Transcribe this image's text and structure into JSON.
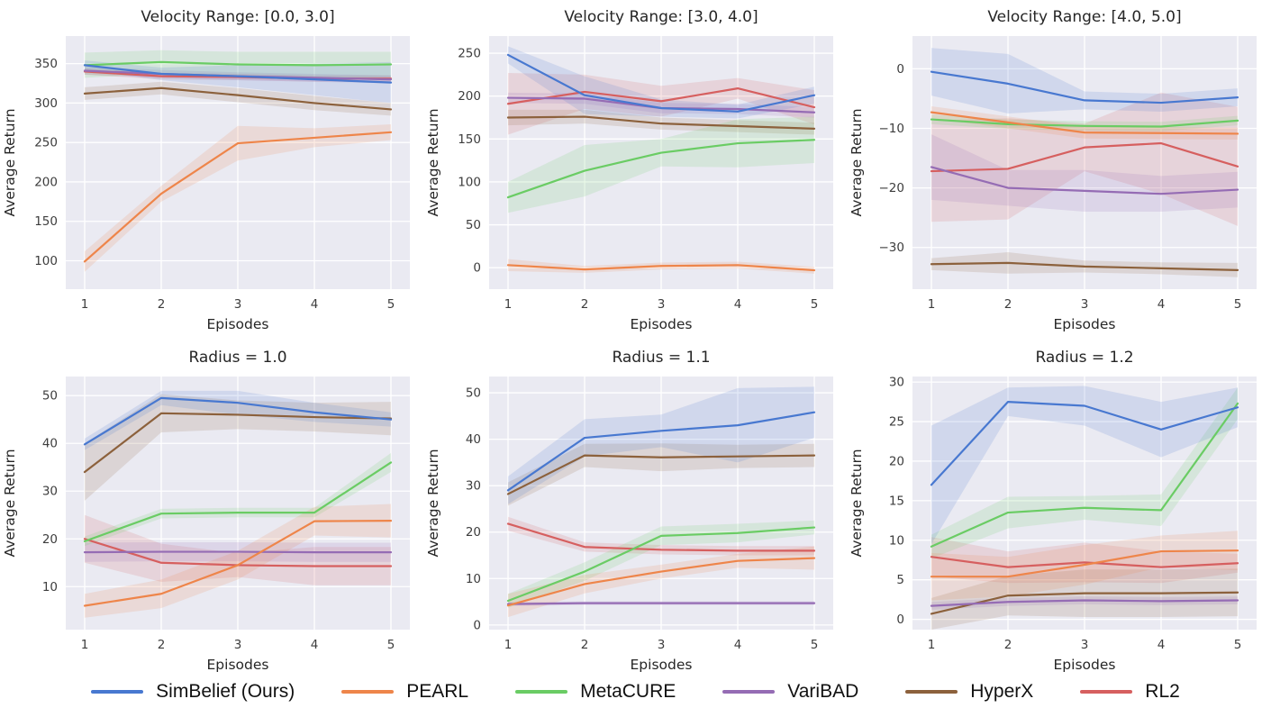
{
  "figure": {
    "background": "#ffffff",
    "plot_background": "#eaeaf2",
    "grid_color": "#ffffff",
    "text_color": "#262626"
  },
  "legend": {
    "items": [
      {
        "label": "SimBelief (Ours)",
        "color": "#4878d0"
      },
      {
        "label": "PEARL",
        "color": "#ee854a"
      },
      {
        "label": "MetaCURE",
        "color": "#6acc64"
      },
      {
        "label": "VariBAD",
        "color": "#956cb4"
      },
      {
        "label": "HyperX",
        "color": "#8c613c"
      },
      {
        "label": "RL2",
        "color": "#d65f5f"
      }
    ]
  },
  "chart_data": [
    {
      "type": "line",
      "title": "Velocity Range: [0.0, 3.0]",
      "xlabel": "Episodes",
      "ylabel": "Average Return",
      "x": [
        1,
        2,
        3,
        4,
        5
      ],
      "xticks": [
        1,
        2,
        3,
        4,
        5
      ],
      "yticks": [
        100,
        150,
        200,
        250,
        300,
        350
      ],
      "ylim": [
        64,
        385
      ],
      "grid": true,
      "legend_position": "figure-bottom",
      "series": [
        {
          "name": "SimBelief (Ours)",
          "color": "#4878d0",
          "values": [
            348,
            337,
            334,
            330,
            326
          ],
          "band": [
            6,
            8,
            14,
            20,
            26
          ]
        },
        {
          "name": "PEARL",
          "color": "#ee854a",
          "values": [
            99,
            185,
            249,
            256,
            263
          ],
          "band": [
            13,
            10,
            22,
            12,
            10
          ]
        },
        {
          "name": "MetaCURE",
          "color": "#6acc64",
          "values": [
            348,
            352,
            349,
            348,
            349
          ],
          "band": [
            16,
            15,
            16,
            17,
            16
          ]
        },
        {
          "name": "VariBAD",
          "color": "#956cb4",
          "values": [
            341,
            337,
            334,
            332,
            330
          ],
          "band": [
            5,
            5,
            5,
            5,
            5
          ]
        },
        {
          "name": "HyperX",
          "color": "#8c613c",
          "values": [
            312,
            319,
            310,
            300,
            292
          ],
          "band": [
            8,
            8,
            9,
            9,
            8
          ]
        },
        {
          "name": "RL2",
          "color": "#d65f5f",
          "values": [
            340,
            334,
            333,
            331,
            331
          ],
          "band": [
            4,
            4,
            4,
            4,
            4
          ]
        }
      ]
    },
    {
      "type": "line",
      "title": "Velocity Range: [3.0, 4.0]",
      "xlabel": "Episodes",
      "ylabel": "Average Return",
      "x": [
        1,
        2,
        3,
        4,
        5
      ],
      "xticks": [
        1,
        2,
        3,
        4,
        5
      ],
      "yticks": [
        0,
        50,
        100,
        150,
        200,
        250
      ],
      "ylim": [
        -25,
        270
      ],
      "grid": true,
      "legend_position": "figure-bottom",
      "series": [
        {
          "name": "SimBelief (Ours)",
          "color": "#4878d0",
          "values": [
            248,
            201,
            186,
            182,
            201
          ],
          "band": [
            10,
            22,
            10,
            8,
            10
          ]
        },
        {
          "name": "PEARL",
          "color": "#ee854a",
          "values": [
            3,
            -2,
            2,
            3,
            -3
          ],
          "band": [
            7,
            4,
            4,
            4,
            4
          ]
        },
        {
          "name": "MetaCURE",
          "color": "#6acc64",
          "values": [
            82,
            113,
            134,
            145,
            149
          ],
          "band": [
            18,
            30,
            16,
            28,
            27
          ]
        },
        {
          "name": "VariBAD",
          "color": "#956cb4",
          "values": [
            198,
            197,
            186,
            185,
            181
          ],
          "band": [
            6,
            6,
            6,
            6,
            6
          ]
        },
        {
          "name": "HyperX",
          "color": "#8c613c",
          "values": [
            175,
            176,
            168,
            165,
            162
          ],
          "band": [
            9,
            8,
            7,
            7,
            7
          ]
        },
        {
          "name": "RL2",
          "color": "#d65f5f",
          "values": [
            191,
            205,
            194,
            209,
            187
          ],
          "band": [
            36,
            20,
            18,
            12,
            20
          ]
        }
      ]
    },
    {
      "type": "line",
      "title": "Velocity Range: [4.0, 5.0]",
      "xlabel": "Episodes",
      "ylabel": "Average Return",
      "x": [
        1,
        2,
        3,
        4,
        5
      ],
      "xticks": [
        1,
        2,
        3,
        4,
        5
      ],
      "yticks": [
        0,
        -10,
        -20,
        -30
      ],
      "ylim": [
        -37,
        5.5
      ],
      "grid": true,
      "legend_position": "figure-bottom",
      "series": [
        {
          "name": "SimBelief (Ours)",
          "color": "#4878d0",
          "values": [
            -0.5,
            -2.5,
            -5.3,
            -5.7,
            -4.8
          ],
          "band": [
            4,
            5,
            1.5,
            1.5,
            1.5
          ]
        },
        {
          "name": "PEARL",
          "color": "#ee854a",
          "values": [
            -7.3,
            -9.0,
            -10.7,
            -10.8,
            -10.9
          ],
          "band": [
            1,
            1,
            1,
            1,
            1
          ]
        },
        {
          "name": "MetaCURE",
          "color": "#6acc64",
          "values": [
            -8.5,
            -9.3,
            -9.6,
            -9.7,
            -8.7
          ],
          "band": [
            0.8,
            0.8,
            0.8,
            0.8,
            0.8
          ]
        },
        {
          "name": "VariBAD",
          "color": "#956cb4",
          "values": [
            -16.5,
            -20.0,
            -20.5,
            -21.0,
            -20.3
          ],
          "band": [
            5.5,
            3,
            3.5,
            3,
            3
          ]
        },
        {
          "name": "HyperX",
          "color": "#8c613c",
          "values": [
            -32.8,
            -32.6,
            -33.2,
            -33.5,
            -33.8
          ],
          "band": [
            1,
            1.8,
            1,
            1,
            1.2
          ]
        },
        {
          "name": "RL2",
          "color": "#d65f5f",
          "values": [
            -17.2,
            -16.8,
            -13.2,
            -12.5,
            -16.4
          ],
          "band": [
            8.5,
            8.5,
            4,
            8.5,
            10
          ]
        }
      ]
    },
    {
      "type": "line",
      "title": "Radius = 1.0",
      "xlabel": "Episodes",
      "ylabel": "Average Return",
      "x": [
        1,
        2,
        3,
        4,
        5
      ],
      "xticks": [
        1,
        2,
        3,
        4,
        5
      ],
      "yticks": [
        10,
        20,
        30,
        40,
        50
      ],
      "ylim": [
        1,
        54
      ],
      "grid": true,
      "legend_position": "figure-bottom",
      "series": [
        {
          "name": "SimBelief (Ours)",
          "color": "#4878d0",
          "values": [
            39.8,
            49.5,
            48.5,
            46.5,
            45.0
          ],
          "band": [
            1.2,
            1.5,
            2.5,
            2,
            1.5
          ]
        },
        {
          "name": "PEARL",
          "color": "#ee854a",
          "values": [
            6.0,
            8.5,
            14.5,
            23.7,
            23.8
          ],
          "band": [
            2.5,
            3,
            3,
            3,
            3.5
          ]
        },
        {
          "name": "MetaCURE",
          "color": "#6acc64",
          "values": [
            19.5,
            25.3,
            25.5,
            25.5,
            36.0
          ],
          "band": [
            1,
            1,
            1,
            1,
            2
          ]
        },
        {
          "name": "VariBAD",
          "color": "#956cb4",
          "values": [
            17.2,
            17.3,
            17.3,
            17.2,
            17.2
          ],
          "band": [
            2,
            2,
            2,
            2,
            2
          ]
        },
        {
          "name": "HyperX",
          "color": "#8c613c",
          "values": [
            34.0,
            46.3,
            46.0,
            45.5,
            45.2
          ],
          "band": [
            6,
            4,
            3,
            3,
            3.5
          ]
        },
        {
          "name": "RL2",
          "color": "#d65f5f",
          "values": [
            20.0,
            15.0,
            14.5,
            14.3,
            14.3
          ],
          "band": [
            5,
            4,
            2.5,
            4,
            4
          ]
        }
      ]
    },
    {
      "type": "line",
      "title": "Radius = 1.1",
      "xlabel": "Episodes",
      "ylabel": "Average Return",
      "x": [
        1,
        2,
        3,
        4,
        5
      ],
      "xticks": [
        1,
        2,
        3,
        4,
        5
      ],
      "yticks": [
        0,
        10,
        20,
        30,
        40,
        50
      ],
      "ylim": [
        -1,
        53.5
      ],
      "grid": true,
      "legend_position": "figure-bottom",
      "series": [
        {
          "name": "SimBelief (Ours)",
          "color": "#4878d0",
          "values": [
            29.0,
            40.3,
            41.8,
            43.0,
            45.8
          ],
          "band": [
            3,
            4,
            3.5,
            8,
            5.5
          ]
        },
        {
          "name": "PEARL",
          "color": "#ee854a",
          "values": [
            4.2,
            8.8,
            11.5,
            13.8,
            14.4
          ],
          "band": [
            2.5,
            2,
            1.5,
            1.5,
            2.5
          ]
        },
        {
          "name": "MetaCURE",
          "color": "#6acc64",
          "values": [
            5.2,
            11.5,
            19.2,
            19.8,
            21.0
          ],
          "band": [
            1.5,
            2,
            2,
            2,
            1.5
          ]
        },
        {
          "name": "VariBAD",
          "color": "#956cb4",
          "values": [
            4.5,
            4.7,
            4.7,
            4.7,
            4.7
          ],
          "band": [
            0.4,
            0.4,
            0.4,
            0.4,
            0.4
          ]
        },
        {
          "name": "HyperX",
          "color": "#8c613c",
          "values": [
            28.2,
            36.5,
            36.1,
            36.3,
            36.5
          ],
          "band": [
            2.5,
            2.5,
            3,
            2.5,
            2.5
          ]
        },
        {
          "name": "RL2",
          "color": "#d65f5f",
          "values": [
            21.8,
            16.8,
            16.2,
            16.0,
            16.0
          ],
          "band": [
            1.5,
            1,
            1,
            1,
            1
          ]
        }
      ]
    },
    {
      "type": "line",
      "title": "Radius = 1.2",
      "xlabel": "Episodes",
      "ylabel": "Average Return",
      "x": [
        1,
        2,
        3,
        4,
        5
      ],
      "xticks": [
        1,
        2,
        3,
        4,
        5
      ],
      "yticks": [
        0,
        5,
        10,
        15,
        20,
        25,
        30
      ],
      "ylim": [
        -1.3,
        30.7
      ],
      "grid": true,
      "legend_position": "figure-bottom",
      "series": [
        {
          "name": "SimBelief (Ours)",
          "color": "#4878d0",
          "values": [
            17.0,
            27.5,
            27.0,
            24.0,
            26.8
          ],
          "band": [
            7.5,
            1.8,
            2.5,
            3.5,
            2.5
          ]
        },
        {
          "name": "PEARL",
          "color": "#ee854a",
          "values": [
            5.4,
            5.4,
            6.9,
            8.6,
            8.7
          ],
          "band": [
            3,
            2.5,
            2.5,
            2,
            2.5
          ]
        },
        {
          "name": "MetaCURE",
          "color": "#6acc64",
          "values": [
            9.2,
            13.5,
            14.1,
            13.8,
            27.3
          ],
          "band": [
            1.5,
            2,
            1.5,
            2,
            2
          ]
        },
        {
          "name": "VariBAD",
          "color": "#956cb4",
          "values": [
            1.7,
            2.2,
            2.4,
            2.3,
            2.4
          ],
          "band": [
            0.5,
            0.5,
            0.5,
            0.5,
            0.5
          ]
        },
        {
          "name": "HyperX",
          "color": "#8c613c",
          "values": [
            0.7,
            3.0,
            3.3,
            3.3,
            3.4
          ],
          "band": [
            2,
            2.5,
            3,
            3,
            3
          ]
        },
        {
          "name": "RL2",
          "color": "#d65f5f",
          "values": [
            7.9,
            6.6,
            7.2,
            6.6,
            7.1
          ],
          "band": [
            2.5,
            2,
            2.5,
            2,
            1.2
          ]
        }
      ]
    }
  ]
}
